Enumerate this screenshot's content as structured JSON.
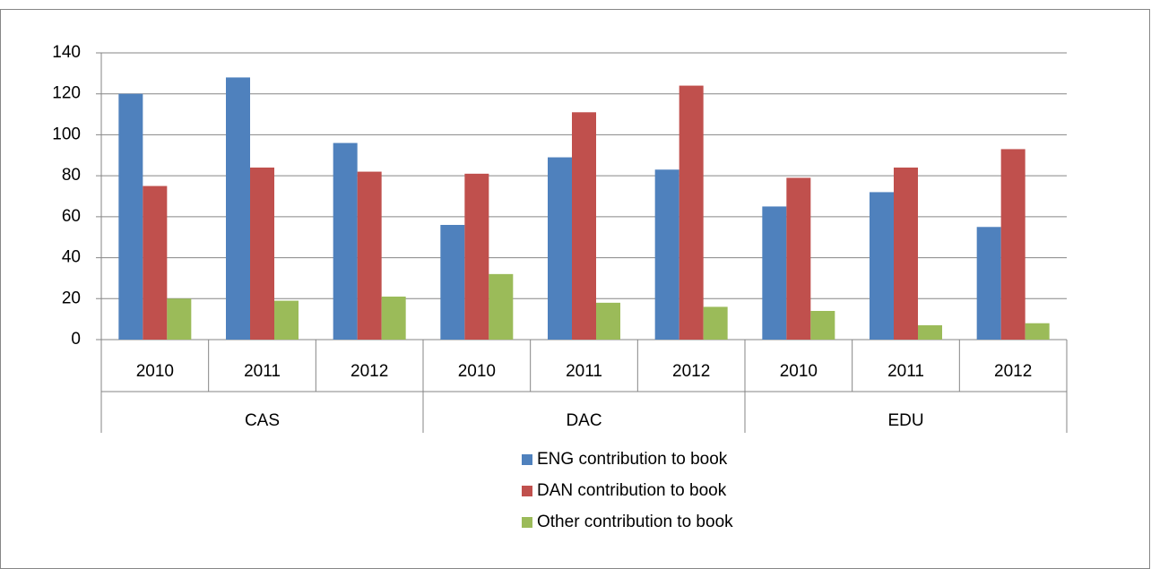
{
  "chart_data": {
    "type": "bar",
    "categories": [
      "2010",
      "2011",
      "2012",
      "2010",
      "2011",
      "2012",
      "2010",
      "2011",
      "2012"
    ],
    "groups": [
      "CAS",
      "DAC",
      "EDU"
    ],
    "series": [
      {
        "name": "ENG contribution to book",
        "color": "#4f81bd",
        "values": [
          120,
          128,
          96,
          56,
          89,
          83,
          65,
          72,
          55
        ]
      },
      {
        "name": "DAN contribution to book",
        "color": "#c0504d",
        "values": [
          75,
          84,
          82,
          81,
          111,
          124,
          79,
          84,
          93
        ]
      },
      {
        "name": "Other contribution to book",
        "color": "#9bbb59",
        "values": [
          20,
          19,
          21,
          32,
          18,
          16,
          14,
          7,
          8
        ]
      }
    ],
    "ylim": [
      0,
      140
    ],
    "yticks": [
      0,
      20,
      40,
      60,
      80,
      100,
      120,
      140
    ],
    "grid": true,
    "legend": "bottom"
  }
}
